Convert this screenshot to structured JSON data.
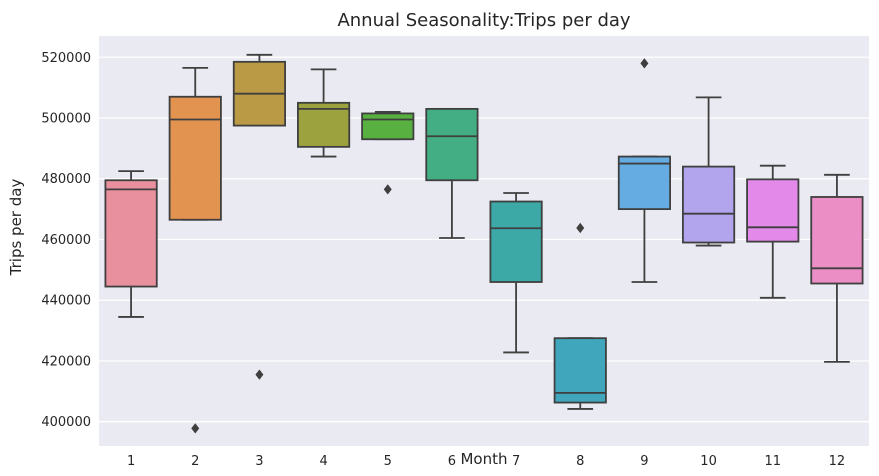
{
  "chart_data": {
    "type": "box",
    "title": "Annual Seasonality:Trips per day",
    "xlabel": "Month",
    "ylabel": "Trips per day",
    "categories": [
      "1",
      "2",
      "3",
      "4",
      "5",
      "6",
      "7",
      "8",
      "9",
      "10",
      "11",
      "12"
    ],
    "ylim": [
      392000,
      527000
    ],
    "yticks": [
      400000,
      420000,
      440000,
      460000,
      480000,
      500000,
      520000
    ],
    "grid": true,
    "boxes": [
      {
        "category": "1",
        "color": "#e8909d",
        "q1": 444500,
        "median": 476500,
        "q3": 479500,
        "whislo": 434500,
        "whishi": 482500,
        "fliers": []
      },
      {
        "category": "2",
        "color": "#e29350",
        "q1": 466500,
        "median": 499500,
        "q3": 507000,
        "whislo": 466500,
        "whishi": 516500,
        "fliers": [
          397800
        ]
      },
      {
        "category": "3",
        "color": "#bb9a46",
        "q1": 497500,
        "median": 508000,
        "q3": 518500,
        "whislo": 497500,
        "whishi": 520800,
        "fliers": [
          415500
        ]
      },
      {
        "category": "4",
        "color": "#9ca23e",
        "q1": 490500,
        "median": 503000,
        "q3": 505000,
        "whislo": 487300,
        "whishi": 516000,
        "fliers": []
      },
      {
        "category": "5",
        "color": "#58b040",
        "q1": 493000,
        "median": 499500,
        "q3": 501500,
        "whislo": 493000,
        "whishi": 502000,
        "fliers": [
          476500
        ]
      },
      {
        "category": "6",
        "color": "#43ae84",
        "q1": 479500,
        "median": 494000,
        "q3": 503000,
        "whislo": 460500,
        "whishi": 503000,
        "fliers": []
      },
      {
        "category": "7",
        "color": "#3ca9a7",
        "q1": 446000,
        "median": 463700,
        "q3": 472500,
        "whislo": 422800,
        "whishi": 475300,
        "fliers": []
      },
      {
        "category": "8",
        "color": "#3fa6bc",
        "q1": 406300,
        "median": 409500,
        "q3": 427500,
        "whislo": 404200,
        "whishi": 427500,
        "fliers": [
          463800
        ]
      },
      {
        "category": "9",
        "color": "#64ace2",
        "q1": 470000,
        "median": 485000,
        "q3": 487300,
        "whislo": 446000,
        "whishi": 487300,
        "fliers": [
          518000
        ]
      },
      {
        "category": "10",
        "color": "#b2a5ee",
        "q1": 459000,
        "median": 468500,
        "q3": 484000,
        "whislo": 458000,
        "whishi": 506800,
        "fliers": []
      },
      {
        "category": "11",
        "color": "#e389ea",
        "q1": 459300,
        "median": 464000,
        "q3": 479800,
        "whislo": 440800,
        "whishi": 484300,
        "fliers": []
      },
      {
        "category": "12",
        "color": "#eb8ec6",
        "q1": 445500,
        "median": 450500,
        "q3": 474000,
        "whislo": 419700,
        "whishi": 481300,
        "fliers": []
      }
    ]
  }
}
